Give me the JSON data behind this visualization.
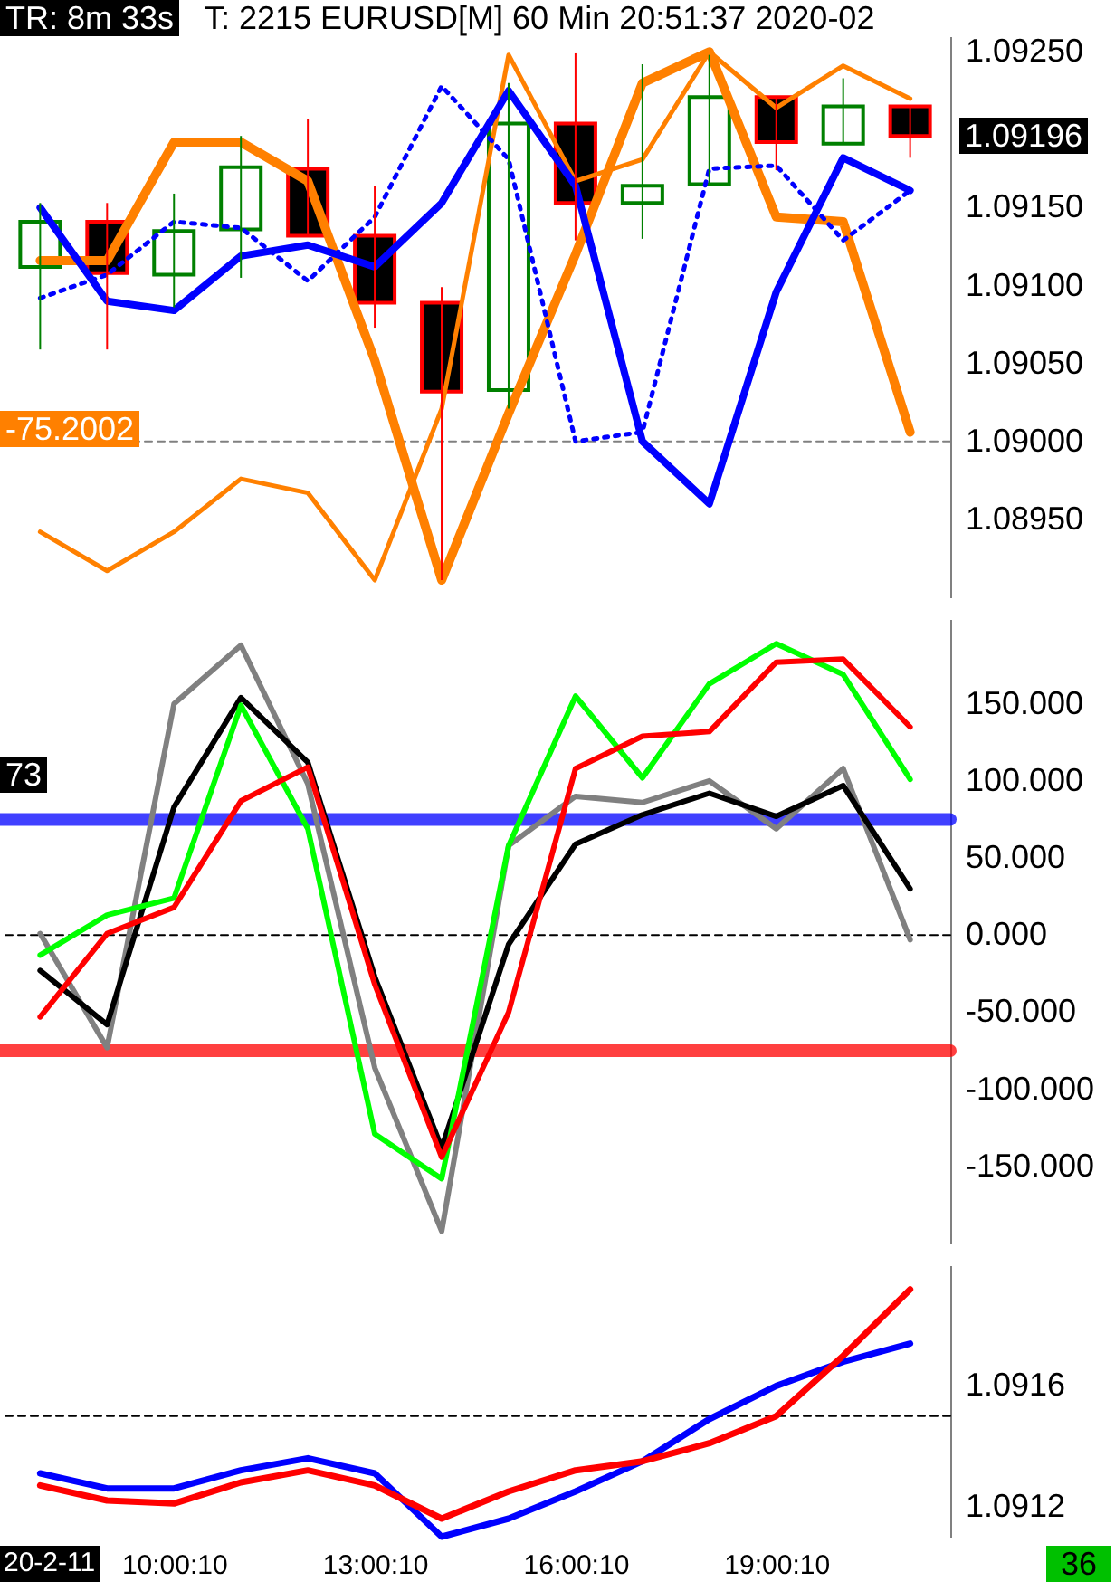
{
  "chart_data": [
    {
      "type": "candlestick",
      "categories": [
        null,
        null,
        null,
        null,
        null,
        null,
        null,
        null,
        null,
        null,
        null,
        null,
        null,
        null
      ],
      "tick_labels": "y",
      "ohlc": [
        [
          1.09112,
          1.09153,
          1.09059,
          1.09141
        ],
        [
          1.09141,
          1.09153,
          1.09059,
          1.09108
        ],
        [
          1.09107,
          1.09159,
          1.09086,
          1.09135
        ],
        [
          1.09136,
          1.09196,
          1.09105,
          1.09176
        ],
        [
          1.09175,
          1.09207,
          1.09132,
          1.09132
        ],
        [
          1.09132,
          1.09164,
          1.09073,
          1.09089
        ],
        [
          1.09089,
          1.09099,
          1.08911,
          1.09032
        ],
        [
          1.09033,
          1.0923,
          1.09021,
          1.09204
        ],
        [
          1.09204,
          1.09249,
          1.09129,
          1.09153
        ],
        [
          1.09153,
          1.09242,
          1.0913,
          1.09164
        ],
        [
          1.09165,
          1.09248,
          1.09165,
          1.09221
        ],
        [
          1.09221,
          1.09221,
          1.09174,
          1.09192
        ],
        [
          1.09191,
          1.09233,
          1.09191,
          1.09215
        ],
        [
          1.09215,
          1.09215,
          1.09182,
          1.09196
        ]
      ],
      "series": [
        {
          "type": "line",
          "color": "#ff8000",
          "values": [
            1.09116,
            1.09116,
            1.09192,
            1.09192,
            1.09167,
            1.09052,
            1.08911,
            1.09018,
            1.0912,
            1.0923,
            1.0925,
            1.09144,
            1.09141,
            1.09006
          ]
        },
        {
          "type": "line",
          "color": "#ff8000",
          "values": [
            1.08942,
            1.08917,
            1.08942,
            1.08976,
            1.08967,
            1.08911,
            1.09021,
            1.09248,
            1.09167,
            1.09181,
            1.0925,
            1.09214,
            1.09241,
            1.0922
          ]
        },
        {
          "type": "line",
          "color": "#0000ff",
          "values": [
            1.0915,
            1.0909,
            1.09084,
            1.09119,
            1.09126,
            1.09112,
            1.09153,
            1.09225,
            1.09164,
            1.09,
            1.0896,
            1.09096,
            1.09182,
            1.09161
          ]
        },
        {
          "type": "line",
          "color": "#0000ff",
          "line_style": "dotted",
          "values": [
            1.09092,
            1.09107,
            1.09141,
            1.09137,
            1.09103,
            1.09144,
            1.09228,
            1.09181,
            1.09,
            1.09006,
            1.09175,
            1.09177,
            1.09129,
            1.09161
          ]
        }
      ],
      "ylim": [
        1.089,
        1.0926
      ],
      "yticks": [
        {
          "value": 1.0895,
          "label": "1.08950"
        },
        {
          "value": 1.09,
          "label": "1.09000"
        },
        {
          "value": 1.0905,
          "label": "1.09050"
        },
        {
          "value": 1.091,
          "label": "1.09100"
        },
        {
          "value": 1.0915,
          "label": "1.09150"
        },
        {
          "value": 1.0925,
          "label": "1.09250"
        }
      ],
      "ref_lines": [
        {
          "axis": "y",
          "value": 1.09,
          "color": "#808080",
          "line_style": "dashed"
        }
      ],
      "annotations": [
        "TR: 8m 33s",
        "T: 2215 EURUSD[M] 60 Min  20:51:37 2020-02",
        "-75.2002",
        "1.09196"
      ]
    },
    {
      "type": "line",
      "categories": [
        null,
        null,
        null,
        null,
        null,
        null,
        null,
        null,
        null,
        null,
        null,
        null,
        null,
        null
      ],
      "tick_labels": "y",
      "series": [
        {
          "color": "#808080",
          "values": [
            1,
            -73,
            150,
            188,
            98,
            -86,
            -192,
            58,
            90,
            86,
            100,
            69,
            108,
            -3
          ]
        },
        {
          "color": "#000000",
          "values": [
            -23,
            -58,
            83,
            154,
            112,
            -27,
            -138,
            -6,
            59,
            78,
            92,
            77,
            97,
            30
          ]
        },
        {
          "color": "#00ff00",
          "values": [
            -13,
            13,
            24,
            149,
            69,
            -129,
            -158,
            58,
            155,
            102,
            163,
            189,
            169,
            101
          ]
        },
        {
          "color": "#ff0000",
          "values": [
            -53,
            1,
            18,
            87,
            109,
            -32,
            -144,
            -50,
            108,
            129,
            132,
            177,
            179,
            135
          ]
        }
      ],
      "ylim": [
        -200,
        205
      ],
      "yticks": [
        {
          "value": -150,
          "label": "-150.000"
        },
        {
          "value": -100,
          "label": "-100.000"
        },
        {
          "value": -50,
          "label": "-50.000"
        },
        {
          "value": 0,
          "label": "0.000"
        },
        {
          "value": 50,
          "label": "50.000"
        },
        {
          "value": 100,
          "label": "100.000"
        },
        {
          "value": 150,
          "label": "150.000"
        }
      ],
      "ref_lines": [
        {
          "axis": "y",
          "value": 0,
          "color": "#000000",
          "line_style": "dashed"
        },
        {
          "axis": "y",
          "value": 75,
          "color": "#0000ff"
        },
        {
          "axis": "y",
          "value": -75,
          "color": "#ff0000"
        }
      ],
      "annotations": [
        "73"
      ]
    },
    {
      "type": "line",
      "categories": [
        null,
        null,
        "10:00:10",
        null,
        null,
        "13:00:10",
        null,
        null,
        "16:00:10",
        null,
        null,
        "19:00:10",
        null,
        null
      ],
      "series": [
        {
          "color": "#0000ff",
          "values": [
            1.09131,
            1.09126,
            1.09126,
            1.09132,
            1.09136,
            1.09131,
            1.0911,
            1.09116,
            1.09125,
            1.09135,
            1.09149,
            1.0916,
            1.09168,
            1.09174
          ]
        },
        {
          "color": "#ff0000",
          "values": [
            1.09127,
            1.09122,
            1.09121,
            1.09128,
            1.09132,
            1.09127,
            1.09116,
            1.09125,
            1.09132,
            1.09135,
            1.09141,
            1.0915,
            1.0917,
            1.09192
          ]
        }
      ],
      "ylim": [
        1.0911,
        1.092
      ],
      "yticks": [
        {
          "value": 1.0912,
          "label": "1.0912"
        },
        {
          "value": 1.0916,
          "label": "1.0916"
        }
      ],
      "ref_lines": [
        {
          "axis": "y",
          "value": 1.0915,
          "color": "#000000",
          "line_style": "dashed"
        }
      ],
      "annotations": [
        "20-2-11",
        "36"
      ]
    }
  ]
}
